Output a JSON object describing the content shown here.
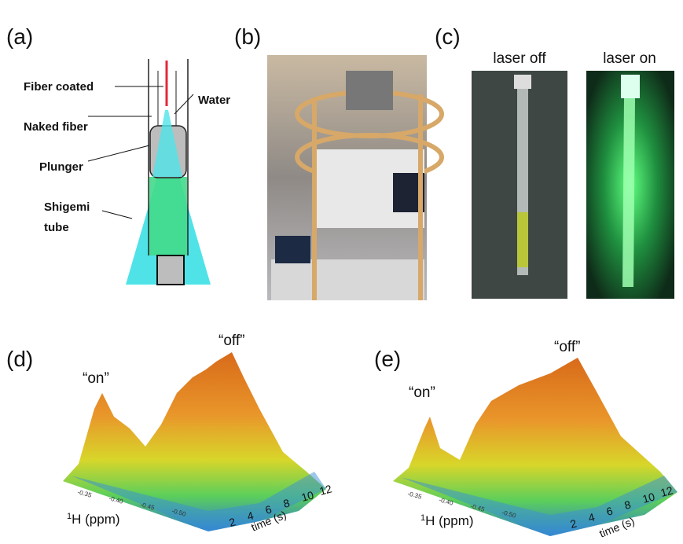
{
  "panel_a": {
    "label": "(a)",
    "annotations": [
      "Fiber coated",
      "Water",
      "Naked fiber",
      "Plunger",
      "Shigemi",
      "tube"
    ]
  },
  "panel_b": {
    "label": "(b)"
  },
  "panel_c": {
    "label": "(c)",
    "captions": [
      "laser off",
      "laser on"
    ]
  },
  "panel_d": {
    "label": "(d)",
    "peak_labels": [
      "“on”",
      "“off”"
    ],
    "x_axis": {
      "superscript": "1",
      "label": "H (ppm)",
      "ticks": [
        "-0.35",
        "-0.40",
        "-0.45",
        "-0.50"
      ]
    },
    "time_axis": {
      "label": "time (s)",
      "ticks": [
        "2",
        "4",
        "6",
        "8",
        "10",
        "12"
      ]
    }
  },
  "panel_e": {
    "label": "(e)",
    "peak_labels": [
      "“on”",
      "“off”"
    ],
    "x_axis": {
      "superscript": "1",
      "label": "H (ppm)",
      "ticks": [
        "-0.35",
        "-0.40",
        "-0.45",
        "-0.50"
      ]
    },
    "time_axis": {
      "label": "time (s)",
      "ticks": [
        "2",
        "4",
        "6",
        "8",
        "10",
        "12"
      ]
    }
  }
}
